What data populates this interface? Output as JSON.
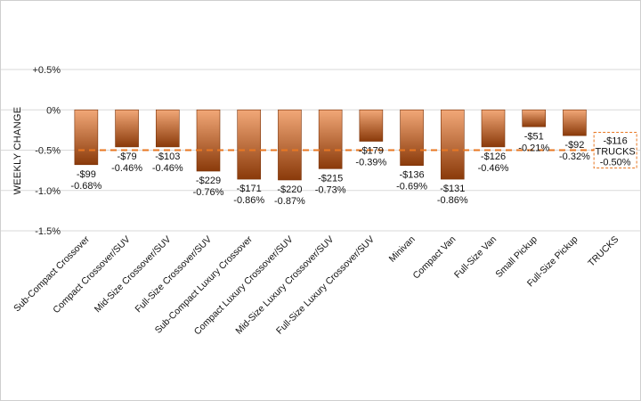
{
  "chart_data": {
    "type": "bar",
    "ylabel": "WEEKLY CHANGE",
    "ylim": [
      -1.5,
      0.5
    ],
    "yticks": [
      0.5,
      0,
      -0.5,
      -1.0,
      -1.5
    ],
    "ytick_labels": [
      "+0.5%",
      "0%",
      "-0.5%",
      "-1.0%",
      "-1.5%"
    ],
    "grid": true,
    "categories": [
      "Sub-Compact Crossover",
      "Compact Crossover/SUV",
      "Mid-Size Crossover/SUV",
      "Full-Size Crossover/SUV",
      "Sub-Compact Luxury Crossover",
      "Compact Luxury Crossover/SUV",
      "Mid-Size Luxury Crossover/SUV",
      "Full-Size Luxury Crossover/SUV",
      "Minivan",
      "Compact Van",
      "Full-Size Van",
      "Small Pickup",
      "Full-Size Pickup",
      "TRUCKS"
    ],
    "values": [
      -0.68,
      -0.46,
      -0.46,
      -0.76,
      -0.86,
      -0.87,
      -0.73,
      -0.39,
      -0.69,
      -0.86,
      -0.46,
      -0.21,
      -0.32,
      null
    ],
    "dollar_labels": [
      "-$99",
      "-$79",
      "-$103",
      "-$229",
      "-$171",
      "-$220",
      "-$215",
      "-$179",
      "-$136",
      "-$131",
      "-$126",
      "-$51",
      "-$92",
      "-$116"
    ],
    "pct_labels": [
      "-0.68%",
      "-0.46%",
      "-0.46%",
      "-0.76%",
      "-0.86%",
      "-0.87%",
      "-0.73%",
      "-0.39%",
      "-0.69%",
      "-0.86%",
      "-0.46%",
      "-0.21%",
      "-0.32%",
      "-0.50%"
    ],
    "reference_line": {
      "name": "TRUCKS",
      "value": -0.5,
      "dollar_label": "-$116",
      "pct_label": "-0.50%",
      "color": "#e87722"
    },
    "colors": {
      "bar_top": "#f2a878",
      "bar_bottom": "#8a3a0a",
      "bar_stroke": "#7a3208",
      "grid": "#d9d9d9"
    }
  }
}
